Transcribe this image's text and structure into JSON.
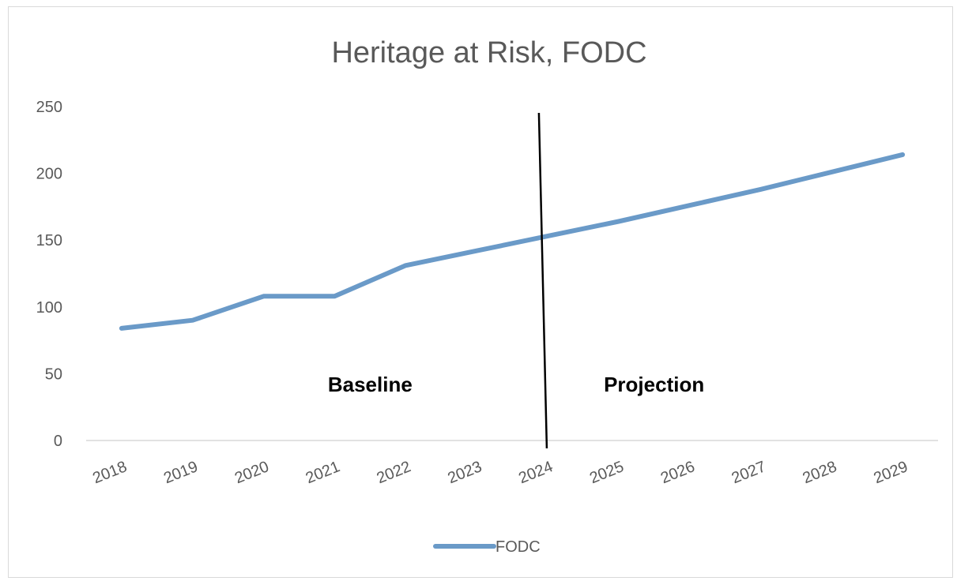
{
  "chart_data": {
    "type": "line",
    "title": "Heritage at Risk, FODC",
    "xlabel": "",
    "ylabel": "",
    "categories": [
      "2018",
      "2019",
      "2020",
      "2021",
      "2022",
      "2023",
      "2024",
      "2025",
      "2026",
      "2027",
      "2028",
      "2029"
    ],
    "series": [
      {
        "name": "FODC",
        "color": "#6a9ac8",
        "values": [
          84,
          90,
          108,
          108,
          131,
          142,
          153,
          164,
          176,
          188,
          201,
          214
        ]
      }
    ],
    "ylim": [
      0,
      250
    ],
    "yticks": [
      0,
      50,
      100,
      150,
      200,
      250
    ],
    "grid": false,
    "legend": "bottom-center",
    "divider_at": "2024",
    "annotations": [
      {
        "text": "Baseline",
        "at": "2021.5",
        "y": 42
      },
      {
        "text": "Projection",
        "at": "2025.5",
        "y": 42
      }
    ]
  }
}
